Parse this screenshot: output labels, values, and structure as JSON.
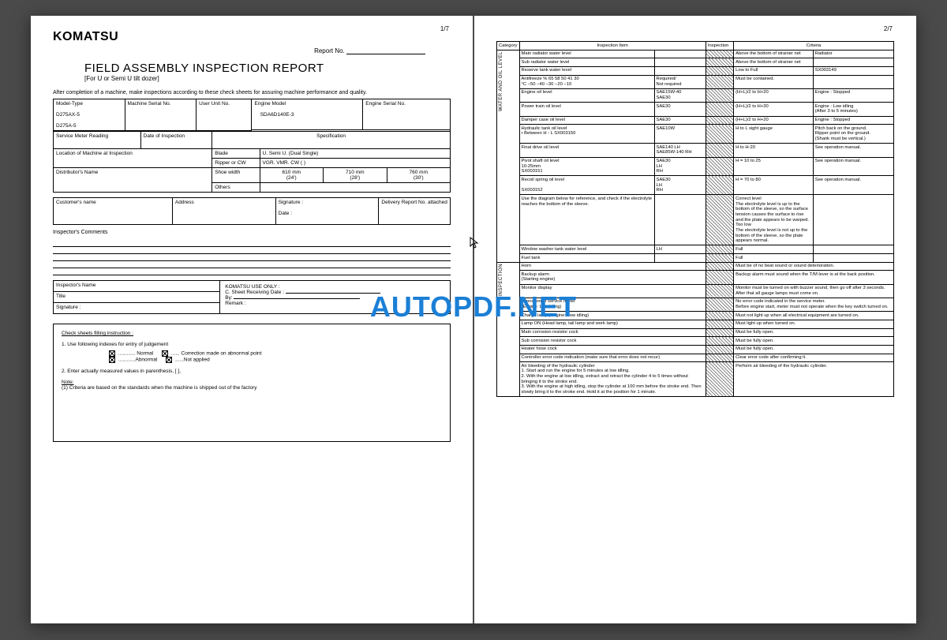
{
  "watermark": "AUTOPDF.NET",
  "page1": {
    "pageNum": "1/7",
    "brand": "KOMATSU",
    "reportNoLabel": "Report No.",
    "title": "FIELD ASSEMBLY INSPECTION REPORT",
    "subtitle": "[For U or Semi U tilt dozer]",
    "intro": "After completion of a machine, make inspections according to these check sheets for assuring machine performance and quality.",
    "headers": {
      "modelType": "Model-Type",
      "model1": "D275AX-5",
      "model2": "D275A-5",
      "machineSerial": "Machine Serial No.",
      "userUnit": "User Unit No.",
      "engineModel": "Engine Model",
      "engineModelVal": "SDA6D140E-3",
      "engineSerial": "Engine Serial No.",
      "serviceMeter": "Service Meter Reading",
      "dateInsp": "Date of Inspection",
      "spec": "Specification",
      "blade": "Blade",
      "bladeOpts": "U.        Semi U.    (Dual   Single)",
      "location": "Location of Machine at Inspection",
      "ripper": "Ripper or CW",
      "ripperOpts": "VGR.    VMR.    CW  (          )",
      "shoeWidth": "Shoe width",
      "shoe1": "610 mm",
      "shoe1b": "(24')",
      "shoe2": "710 mm",
      "shoe2b": "(28')",
      "shoe3": "760 mm",
      "shoe3b": "(30')",
      "distributor": "Distributor's Name",
      "others": "Others",
      "customer": "Customer's name",
      "address": "Address",
      "signature": "Signature :",
      "date": "Date :",
      "delivery": "Delivery Report No. attached",
      "inspComments": "Inspector's Comments",
      "inspName": "Inspector's Name",
      "titleLbl": "Title",
      "sigLbl": "Signature :",
      "useOnly": "KOMATSU USE ONLY  :",
      "sheetDate": "C. Sheet Receiving Date :",
      "by": "By:",
      "remark": "Remark :"
    },
    "instr": {
      "heading": "Check sheets filling instruction :",
      "l1": "1.  Use following indexes for entry of judgement",
      "normal": "............ Normal",
      "correction": "...... Correction  made on abnormal point",
      "abnormal": "............Abnormal",
      "notapplied": "......Not applied",
      "l2": "2.  Enter actually measured values in parenthesis, [          ],",
      "note": "Note:",
      "note1": "(1)  Criteria are based on the standards when the machine is shipped  out of the factory"
    }
  },
  "page2": {
    "pageNum": "2/7",
    "colHeaders": {
      "cat": "Category",
      "item": "Inspection Item",
      "insp": "Inspection",
      "crit": "Criteria"
    },
    "sideLabel1": "WATER AND OIL LEVEL",
    "sideLabel2": "INSPECTION",
    "rows1": [
      {
        "item": "Main radiator water level",
        "spec": "",
        "crit": "Above the bottom of strainer net",
        "right": "Radiator"
      },
      {
        "item": "Sub radiator water level",
        "spec": "",
        "crit": "Above the bottom of strainer net",
        "right": ""
      },
      {
        "item": "Reserve tank water level",
        "spec": "",
        "crit": "Low to Full",
        "right": "SX003149"
      },
      {
        "item": "Antifreeze  %   65   58   50   41   30\n                    °C   −50  −40  −30  −20  −10",
        "spec": "Required/\nNot required",
        "crit": "Must be contained.",
        "right": ""
      },
      {
        "item": "Engine oil level",
        "spec": "SAE15W-40\nSAE30",
        "crit": "(H+L)/2 to H+20",
        "right": "Engine : Stopped"
      },
      {
        "item": "Power train oil level",
        "spec": "SAE30",
        "crit": "(H+L)/2 to H+30",
        "right": "Engine : Low idling\n(After 3 to 5 minutes)"
      },
      {
        "item": "Damper case oil level",
        "spec": "SAE30",
        "crit": "(H+L)/2 to H+20",
        "right": "Engine : Stopped"
      },
      {
        "item": "Hydraulic tank oil level\n• Between H - L           SX003150",
        "spec": "SAE10W",
        "crit": "H to L sight gauge",
        "right": "Pitch back on the ground.\nRipper point on the ground.\n(Shank must be vertical.)"
      },
      {
        "item": "Final drive oil level",
        "spec": "SAE140         LH\nSAE85W-140  RH",
        "crit": "H to H-20",
        "right": "See operation manual."
      },
      {
        "item": "Pivot shaft oil level\n                    10-25mm\n                    SX003151",
        "spec": "SAE30\n                LH\n                RH",
        "crit": "H = 10 to 25",
        "right": "See operation manual."
      },
      {
        "item": "Recoil spring oil level\n\n             SX003152",
        "spec": "SAE30\n                LH\n                RH",
        "crit": "H = 70 to 80",
        "right": "See operation manual."
      },
      {
        "item": "Use the diagram below for reference, and check if the electrolyte reaches the bottom of the sleeve.",
        "spec": "",
        "crit": "Correct level\nThe electrolyte level is up to the bottom of the sleeve, so the surface tension causes the surface to rise and the plate appears to be warped.\nToo low\nThe electrolyte level is not up to the bottom of the sleeve, so the plate appears normal.",
        "right": ""
      },
      {
        "item": "Window washer tank water level",
        "spec": "            LH",
        "crit": "Full",
        "right": ""
      },
      {
        "item": "Fuel tank",
        "spec": "",
        "crit": "Full",
        "right": ""
      }
    ],
    "rows2": [
      {
        "item": "Horn",
        "crit": "Must be of no beat sound or sound deterioration."
      },
      {
        "item": "Backup alarm\n(Starting engine)",
        "crit": "Backup alarm must sound when the T/M lever is at the back position."
      },
      {
        "item": "Monitor display",
        "crit": "Monitor must be turned on with buzzer sound, then go off after 3 seconds.  After that all gauge lamps must come on."
      },
      {
        "item": "Operation of service meter\n(Engine: Low idling)",
        "crit": "No error code indicated in the service meter.\nBefore engine start, meter must not operate when the key switch turned on."
      },
      {
        "item": "Charge lamp (Engine: Low idling)",
        "crit": "Must not light up when all electrical equipment are turned on."
      },
      {
        "item": "Lamp ON (Head lamp, tail lamp and work lamp)",
        "crit": "Must light up when turned on."
      },
      {
        "item": "Main corrosion resistor cock",
        "crit": "Must be fully open."
      },
      {
        "item": "Sub corrosion resistor cock",
        "crit": "Must be fully open."
      },
      {
        "item": "Heater hose cock",
        "crit": "Must be fully open."
      },
      {
        "item": "Controller error code indication (make sure that error does not recur)",
        "crit": "Clear error code after confirming it."
      },
      {
        "item": "Air bleeding of the hydraulic cylinder\n1.   Start and run the engine for 5 minutes at low idling.\n2.   With the engine at low idling, extract and retract the cylinder 4 to 5 times without bringing it to the stroke end.\n3.   With the engine at high idling, stop the cylinder at 100 mm before the stroke end.  Then slowly bring it to the stroke end. Hold it at the position for 1 minute.",
        "crit": "Perform air bleeding of the hydraulic cylinder."
      }
    ]
  }
}
